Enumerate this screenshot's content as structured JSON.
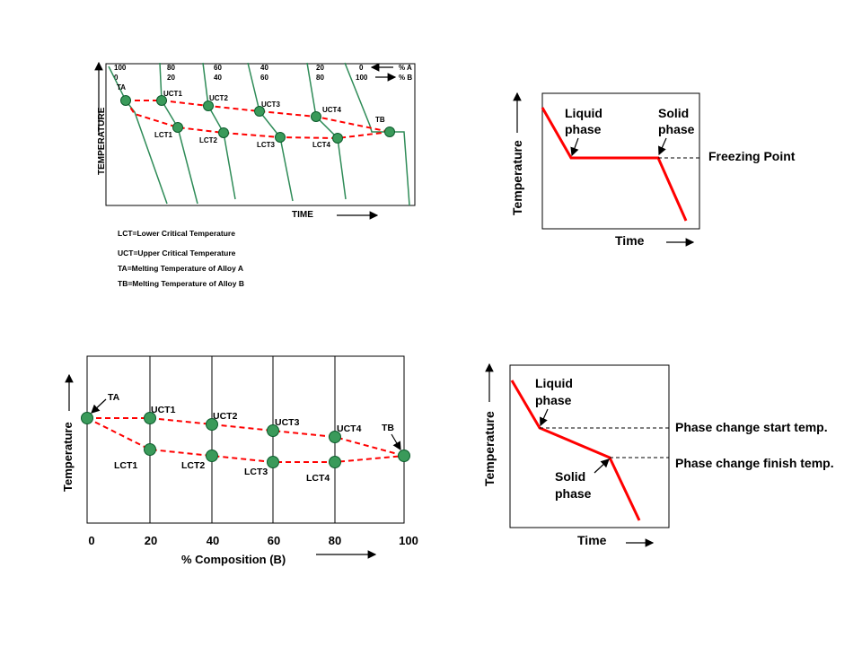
{
  "colors": {
    "cooling_curve": "#2e8b57",
    "phase_curve": "#ff0000",
    "node": "#3a9a5a"
  },
  "top_left": {
    "comp_a": [
      "100",
      "80",
      "60",
      "40",
      "20",
      "0"
    ],
    "comp_b": [
      "0",
      "20",
      "40",
      "60",
      "80",
      "100"
    ],
    "pct_a": "% A",
    "pct_b": "% B",
    "y_label": "TEMPERATURE",
    "x_label": "TIME",
    "ta": "TA",
    "tb": "TB",
    "uct": [
      "UCT1",
      "UCT2",
      "UCT3",
      "UCT4"
    ],
    "lct": [
      "LCT1",
      "LCT2",
      "LCT3",
      "LCT4"
    ],
    "legend": [
      "LCT=Lower Critical Temperature",
      "UCT=Upper Critical Temperature",
      "TA=Melting Temperature of Alloy A",
      "TB=Melting Temperature of Alloy B"
    ]
  },
  "top_right": {
    "y_label": "Temperature",
    "x_label": "Time",
    "liquid": [
      "Liquid",
      "phase"
    ],
    "solid": [
      "Solid",
      "phase"
    ],
    "freezing": "Freezing Point"
  },
  "bottom_left": {
    "y_label": "Temperature",
    "x_label": "% Composition (B)",
    "x_ticks": [
      "0",
      "20",
      "40",
      "60",
      "80",
      "100"
    ],
    "ta": "TA",
    "tb": "TB",
    "uct": [
      "UCT1",
      "UCT2",
      "UCT3",
      "UCT4"
    ],
    "lct": [
      "LCT1",
      "LCT2",
      "LCT3",
      "LCT4"
    ]
  },
  "bottom_right": {
    "y_label": "Temperature",
    "x_label": "Time",
    "liquid": [
      "Liquid",
      "phase"
    ],
    "solid": [
      "Solid",
      "phase"
    ],
    "start": "Phase change start temp.",
    "finish": "Phase change finish temp."
  }
}
